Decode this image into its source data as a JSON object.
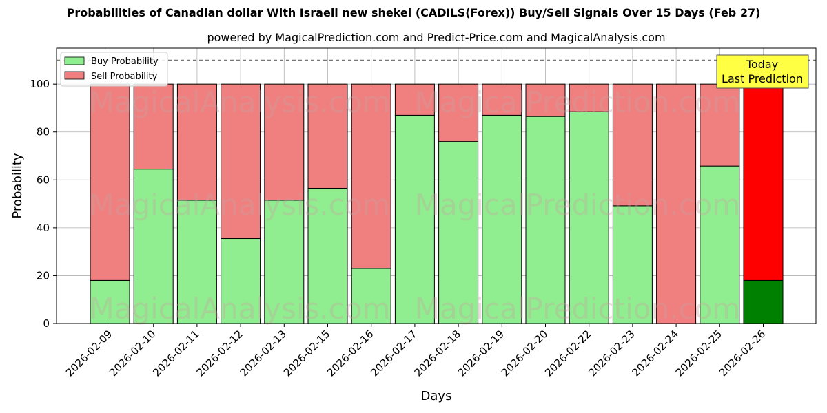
{
  "chart_data": {
    "type": "bar",
    "stacked": true,
    "title": "Probabilities of Canadian dollar With Israeli new shekel (CADILS(Forex)) Buy/Sell Signals Over 15 Days (Feb 27)",
    "subtitle": "powered by MagicalPrediction.com and Predict-Price.com and MagicalAnalysis.com",
    "xlabel": "Days",
    "ylabel": "Probability",
    "ylim": [
      0,
      115
    ],
    "yticks": [
      0,
      20,
      40,
      60,
      80,
      100
    ],
    "reference_line": 110,
    "grid": true,
    "legend_position": "top-left",
    "categories": [
      "2026-02-09",
      "2026-02-10",
      "2026-02-11",
      "2026-02-12",
      "2026-02-13",
      "2026-02-15",
      "2026-02-16",
      "2026-02-17",
      "2026-02-18",
      "2026-02-19",
      "2026-02-20",
      "2026-02-22",
      "2026-02-23",
      "2026-02-24",
      "2026-02-25",
      "2026-02-26"
    ],
    "series": [
      {
        "name": "Buy Probability",
        "color": "#90ee90",
        "highlight_color": "#008000",
        "values": [
          18,
          64.5,
          51.5,
          35.5,
          51.5,
          56.5,
          23,
          87,
          76,
          87,
          86.5,
          88.5,
          49.2,
          0,
          65.8,
          18
        ]
      },
      {
        "name": "Sell Probability",
        "color": "#f08080",
        "highlight_color": "#ff0000",
        "values": [
          82,
          35.5,
          48.5,
          64.5,
          48.5,
          43.5,
          77,
          13,
          24,
          13,
          13.5,
          11.5,
          50.8,
          100,
          34.2,
          82
        ]
      }
    ],
    "highlight_last": true,
    "annotation": {
      "line1": "Today",
      "line2": "Last Prediction",
      "color": "#ffff44"
    },
    "watermarks": [
      "MagicalAnalysis.com",
      "MagicalPrediction.com"
    ]
  }
}
